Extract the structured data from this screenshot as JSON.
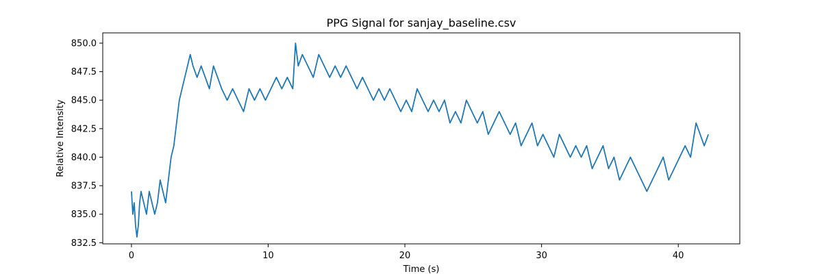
{
  "chart_data": {
    "type": "line",
    "title": "PPG Signal for sanjay_baseline.csv",
    "xlabel": "Time (s)",
    "ylabel": "Relative Intensity",
    "xlim": [
      -2.1,
      44.5
    ],
    "ylim": [
      832.4,
      850.9
    ],
    "xticks": [
      0,
      10,
      20,
      30,
      40
    ],
    "xtick_labels": [
      "0",
      "10",
      "20",
      "30",
      "40"
    ],
    "yticks": [
      832.5,
      835.0,
      837.5,
      840.0,
      842.5,
      845.0,
      847.5,
      850.0
    ],
    "ytick_labels": [
      "832.5",
      "835.0",
      "837.5",
      "840.0",
      "842.5",
      "845.0",
      "847.5",
      "850.0"
    ],
    "grid": false,
    "legend": "none",
    "series": [
      {
        "color": "#1f77b4",
        "x": [
          0.0,
          0.1,
          0.2,
          0.3,
          0.4,
          0.5,
          0.6,
          0.7,
          0.9,
          1.1,
          1.3,
          1.5,
          1.7,
          1.9,
          2.1,
          2.3,
          2.5,
          2.7,
          2.9,
          3.1,
          3.3,
          3.5,
          3.7,
          3.9,
          4.1,
          4.3,
          4.5,
          4.8,
          5.1,
          5.4,
          5.7,
          6.0,
          6.3,
          6.6,
          7.0,
          7.4,
          7.8,
          8.2,
          8.6,
          9.0,
          9.4,
          9.8,
          10.2,
          10.6,
          11.0,
          11.4,
          11.8,
          12.0,
          12.2,
          12.5,
          12.9,
          13.3,
          13.7,
          14.1,
          14.5,
          14.9,
          15.3,
          15.7,
          16.1,
          16.5,
          16.9,
          17.3,
          17.7,
          18.1,
          18.5,
          18.9,
          19.3,
          19.7,
          20.1,
          20.5,
          20.9,
          21.3,
          21.7,
          22.1,
          22.5,
          22.9,
          23.3,
          23.7,
          24.1,
          24.5,
          24.9,
          25.3,
          25.7,
          26.1,
          26.5,
          26.9,
          27.3,
          27.7,
          28.1,
          28.5,
          28.9,
          29.3,
          29.7,
          30.1,
          30.5,
          30.9,
          31.3,
          31.7,
          32.1,
          32.5,
          32.9,
          33.3,
          33.7,
          34.1,
          34.5,
          34.9,
          35.3,
          35.7,
          36.1,
          36.5,
          36.9,
          37.3,
          37.7,
          38.1,
          38.5,
          38.9,
          39.3,
          39.7,
          40.1,
          40.5,
          40.9,
          41.3,
          41.6,
          41.9,
          42.2
        ],
        "y": [
          837,
          835,
          836,
          834,
          833,
          834,
          836,
          837,
          836,
          835,
          837,
          836,
          835,
          836,
          838,
          837,
          836,
          838,
          840,
          841,
          843,
          845,
          846,
          847,
          848,
          849,
          848,
          847,
          848,
          847,
          846,
          848,
          847,
          846,
          845,
          846,
          845,
          844,
          846,
          845,
          846,
          845,
          846,
          847,
          846,
          847,
          846,
          850,
          848,
          849,
          848,
          847,
          849,
          848,
          847,
          848,
          847,
          848,
          847,
          846,
          847,
          846,
          845,
          846,
          845,
          846,
          845,
          844,
          845,
          844,
          846,
          845,
          844,
          845,
          844,
          845,
          843,
          844,
          843,
          845,
          844,
          843,
          844,
          842,
          843,
          844,
          843,
          842,
          843,
          841,
          842,
          843,
          841,
          842,
          841,
          840,
          842,
          841,
          840,
          841,
          840,
          841,
          839,
          840,
          841,
          839,
          840,
          838,
          839,
          840,
          839,
          838,
          837,
          838,
          839,
          840,
          838,
          839,
          840,
          841,
          840,
          843,
          842,
          841,
          842
        ]
      }
    ]
  }
}
